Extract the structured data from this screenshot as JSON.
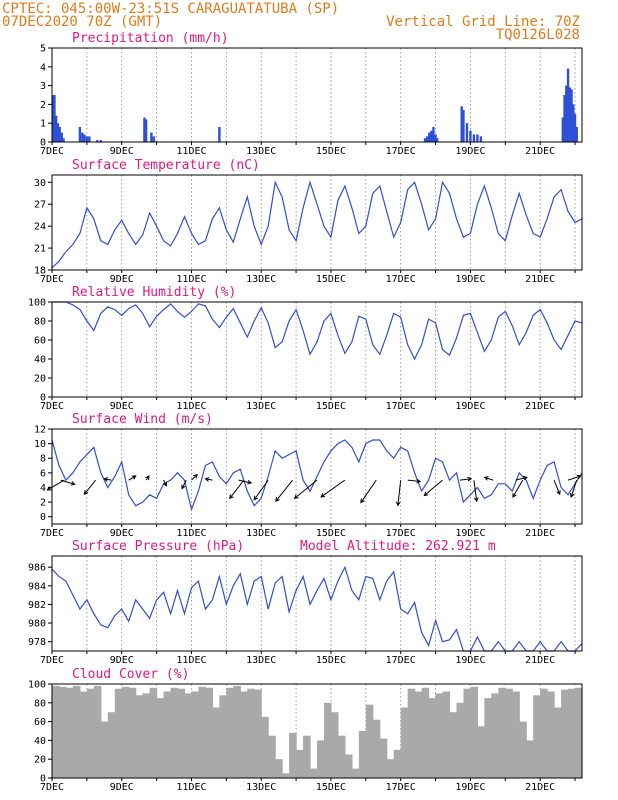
{
  "header": {
    "line1": "CPTEC:  045:00W-23:51S  CARAGUATATUBA (SP)",
    "line2": "07DEC2020 70Z (GMT)",
    "right1": "Vertical Grid Line: 70Z",
    "right2": "TQ0126L028"
  },
  "colors": {
    "series": "#2e4fd6",
    "cloud": "#a9a9a9",
    "title": "#e0197d",
    "header": "#e07b1a"
  },
  "chart_data": [
    {
      "type": "bar",
      "title": "Precipitation (mm/h)",
      "x_range": [
        7,
        22.2
      ],
      "ylim": [
        0,
        5
      ],
      "yticks": [
        0,
        1,
        2,
        3,
        4,
        5
      ],
      "xticks": [
        "7DEC",
        "9DEC",
        "11DEC",
        "13DEC",
        "15DEC",
        "17DEC",
        "19DEC",
        "21DEC"
      ],
      "x": [
        7.03,
        7.07,
        7.12,
        7.17,
        7.22,
        7.28,
        7.33,
        7.8,
        7.87,
        7.93,
        8.0,
        8.07,
        8.3,
        8.4,
        9.65,
        9.7,
        9.85,
        9.92,
        11.8,
        17.7,
        17.76,
        17.82,
        17.88,
        17.94,
        18.0,
        18.05,
        18.75,
        18.8,
        18.9,
        19.0,
        19.1,
        19.2,
        19.3,
        21.65,
        21.7,
        21.75,
        21.8,
        21.85,
        21.9,
        21.95,
        22.0,
        22.05
      ],
      "values": [
        2.5,
        2.5,
        1.4,
        1.0,
        0.8,
        0.5,
        0.2,
        0.8,
        0.5,
        0.4,
        0.3,
        0.3,
        0.1,
        0.1,
        1.3,
        1.2,
        0.5,
        0.3,
        0.8,
        0.2,
        0.3,
        0.5,
        0.6,
        0.8,
        0.4,
        0.2,
        1.9,
        1.7,
        1.0,
        0.6,
        0.4,
        0.4,
        0.3,
        1.3,
        2.5,
        3.0,
        3.9,
        2.9,
        2.8,
        2.0,
        1.5,
        0.8
      ]
    },
    {
      "type": "line",
      "title": "Surface Temperature (nC)",
      "x_range": [
        7,
        22.2
      ],
      "ylim": [
        18,
        31
      ],
      "yticks": [
        18,
        21,
        24,
        27,
        30
      ],
      "xticks": [
        "7DEC",
        "9DEC",
        "11DEC",
        "13DEC",
        "15DEC",
        "17DEC",
        "19DEC",
        "21DEC"
      ],
      "x": [
        7.0,
        7.2,
        7.4,
        7.6,
        7.8,
        8.0,
        8.2,
        8.4,
        8.6,
        8.8,
        9.0,
        9.2,
        9.4,
        9.6,
        9.8,
        10.0,
        10.2,
        10.4,
        10.6,
        10.8,
        11.0,
        11.2,
        11.4,
        11.6,
        11.8,
        12.0,
        12.2,
        12.4,
        12.6,
        12.8,
        13.0,
        13.2,
        13.4,
        13.6,
        13.8,
        14.0,
        14.2,
        14.4,
        14.6,
        14.8,
        15.0,
        15.2,
        15.4,
        15.6,
        15.8,
        16.0,
        16.2,
        16.4,
        16.6,
        16.8,
        17.0,
        17.2,
        17.4,
        17.6,
        17.8,
        18.0,
        18.2,
        18.4,
        18.6,
        18.8,
        19.0,
        19.2,
        19.4,
        19.6,
        19.8,
        20.0,
        20.2,
        20.4,
        20.6,
        20.8,
        21.0,
        21.2,
        21.4,
        21.6,
        21.8,
        22.0,
        22.2
      ],
      "values": [
        18.3,
        19.2,
        20.5,
        21.5,
        23.0,
        26.5,
        25.0,
        22.0,
        21.5,
        23.5,
        24.8,
        23.0,
        21.5,
        22.8,
        25.8,
        24.0,
        22.0,
        21.3,
        23.0,
        25.3,
        23.0,
        21.5,
        22.0,
        25.0,
        26.5,
        23.5,
        21.8,
        25.0,
        28.0,
        24.0,
        21.5,
        24.0,
        30.0,
        28.0,
        23.5,
        22.0,
        26.5,
        30.0,
        27.0,
        24.0,
        22.5,
        27.5,
        29.5,
        26.5,
        23.0,
        24.0,
        28.5,
        29.5,
        26.0,
        22.5,
        24.5,
        29.0,
        30.0,
        27.0,
        23.5,
        25.0,
        30.0,
        28.5,
        25.0,
        22.5,
        23.0,
        27.0,
        29.5,
        26.5,
        23.0,
        22.0,
        25.5,
        28.5,
        25.5,
        23.0,
        22.5,
        25.0,
        28.0,
        29.0,
        26.0,
        24.5,
        25.0
      ]
    },
    {
      "type": "line",
      "title": "Relative Humidity (%)",
      "x_range": [
        7,
        22.2
      ],
      "ylim": [
        0,
        100
      ],
      "yticks": [
        0,
        20,
        40,
        60,
        80,
        100
      ],
      "xticks": [
        "7DEC",
        "9DEC",
        "11DEC",
        "13DEC",
        "15DEC",
        "17DEC",
        "19DEC",
        "21DEC"
      ],
      "x": [
        7.0,
        7.2,
        7.4,
        7.6,
        7.8,
        8.0,
        8.2,
        8.4,
        8.6,
        8.8,
        9.0,
        9.2,
        9.4,
        9.6,
        9.8,
        10.0,
        10.2,
        10.4,
        10.6,
        10.8,
        11.0,
        11.2,
        11.4,
        11.6,
        11.8,
        12.0,
        12.2,
        12.4,
        12.6,
        12.8,
        13.0,
        13.2,
        13.4,
        13.6,
        13.8,
        14.0,
        14.2,
        14.4,
        14.6,
        14.8,
        15.0,
        15.2,
        15.4,
        15.6,
        15.8,
        16.0,
        16.2,
        16.4,
        16.6,
        16.8,
        17.0,
        17.2,
        17.4,
        17.6,
        17.8,
        18.0,
        18.2,
        18.4,
        18.6,
        18.8,
        19.0,
        19.2,
        19.4,
        19.6,
        19.8,
        20.0,
        20.2,
        20.4,
        20.6,
        20.8,
        21.0,
        21.2,
        21.4,
        21.6,
        21.8,
        22.0,
        22.2
      ],
      "values": [
        100,
        100,
        100,
        97,
        92,
        80,
        70,
        88,
        95,
        92,
        86,
        93,
        97,
        88,
        74,
        85,
        92,
        98,
        90,
        84,
        90,
        98,
        96,
        82,
        73,
        84,
        93,
        78,
        63,
        80,
        94,
        78,
        52,
        58,
        80,
        92,
        70,
        45,
        58,
        80,
        88,
        65,
        46,
        58,
        85,
        82,
        55,
        45,
        65,
        88,
        84,
        55,
        40,
        55,
        82,
        78,
        50,
        44,
        62,
        86,
        88,
        68,
        48,
        60,
        84,
        90,
        75,
        55,
        68,
        86,
        92,
        78,
        60,
        50,
        65,
        80,
        78
      ]
    },
    {
      "type": "line",
      "title": "Surface Wind (m/s)",
      "x_range": [
        7,
        22.2
      ],
      "ylim": [
        -1,
        12
      ],
      "yticks": [
        0,
        2,
        4,
        6,
        8,
        10,
        12
      ],
      "xticks": [
        "7DEC",
        "9DEC",
        "11DEC",
        "13DEC",
        "15DEC",
        "17DEC",
        "19DEC",
        "21DEC"
      ],
      "x": [
        7.0,
        7.2,
        7.4,
        7.6,
        7.8,
        8.0,
        8.2,
        8.4,
        8.6,
        8.8,
        9.0,
        9.2,
        9.4,
        9.6,
        9.8,
        10.0,
        10.2,
        10.4,
        10.6,
        10.8,
        11.0,
        11.2,
        11.4,
        11.6,
        11.8,
        12.0,
        12.2,
        12.4,
        12.6,
        12.8,
        13.0,
        13.2,
        13.4,
        13.6,
        13.8,
        14.0,
        14.2,
        14.4,
        14.6,
        14.8,
        15.0,
        15.2,
        15.4,
        15.6,
        15.8,
        16.0,
        16.2,
        16.4,
        16.6,
        16.8,
        17.0,
        17.2,
        17.4,
        17.6,
        17.8,
        18.0,
        18.2,
        18.4,
        18.6,
        18.8,
        19.0,
        19.2,
        19.4,
        19.6,
        19.8,
        20.0,
        20.2,
        20.4,
        20.6,
        20.8,
        21.0,
        21.2,
        21.4,
        21.6,
        21.8,
        22.0,
        22.2
      ],
      "values": [
        10.5,
        7.0,
        5.0,
        6.0,
        7.5,
        8.5,
        9.5,
        6.0,
        4.0,
        5.5,
        7.5,
        3.0,
        1.5,
        2.0,
        3.0,
        2.5,
        4.5,
        5.0,
        6.0,
        5.0,
        1.0,
        3.5,
        7.0,
        7.5,
        5.5,
        4.5,
        6.0,
        6.5,
        3.5,
        1.5,
        2.5,
        5.5,
        9.0,
        8.0,
        8.5,
        9.0,
        5.0,
        3.5,
        5.5,
        7.5,
        9.0,
        10.0,
        10.5,
        9.5,
        7.5,
        10.0,
        10.5,
        10.5,
        9.0,
        8.0,
        9.5,
        9.0,
        6.0,
        3.5,
        5.0,
        8.0,
        7.5,
        5.0,
        6.0,
        2.0,
        3.0,
        4.0,
        2.5,
        3.0,
        4.5,
        4.5,
        3.5,
        6.0,
        5.0,
        2.5,
        5.0,
        7.0,
        7.5,
        4.0,
        3.0,
        4.5,
        6.0
      ],
      "arrows": [
        {
          "x": 7.25,
          "u": 1.0,
          "v": -0.3
        },
        {
          "x": 7.35,
          "u": -1.2,
          "v": -0.7
        },
        {
          "x": 8.25,
          "u": -0.8,
          "v": -1.0
        },
        {
          "x": 8.7,
          "u": -0.5,
          "v": 0.1
        },
        {
          "x": 9.2,
          "u": 0.5,
          "v": 0.3
        },
        {
          "x": 9.7,
          "u": 0.2,
          "v": 0.3
        },
        {
          "x": 10.2,
          "u": 0.2,
          "v": -0.4
        },
        {
          "x": 10.85,
          "u": -0.3,
          "v": -0.6
        },
        {
          "x": 11.0,
          "u": 0.4,
          "v": 0.4
        },
        {
          "x": 11.6,
          "u": -0.5,
          "v": 0.1
        },
        {
          "x": 12.35,
          "u": 0.9,
          "v": -0.2
        },
        {
          "x": 12.5,
          "u": -1.0,
          "v": -1.3
        },
        {
          "x": 13.2,
          "u": -1.0,
          "v": -1.4
        },
        {
          "x": 13.9,
          "u": -1.2,
          "v": -1.5
        },
        {
          "x": 14.6,
          "u": -1.6,
          "v": -1.3
        },
        {
          "x": 15.4,
          "u": -1.7,
          "v": -1.2
        },
        {
          "x": 16.3,
          "u": -1.1,
          "v": -1.6
        },
        {
          "x": 17.0,
          "u": -0.2,
          "v": -1.8
        },
        {
          "x": 17.2,
          "u": 0.9,
          "v": -0.1
        },
        {
          "x": 18.2,
          "u": -1.3,
          "v": -1.1
        },
        {
          "x": 18.7,
          "u": 0.8,
          "v": 0.1
        },
        {
          "x": 19.1,
          "u": 0.2,
          "v": -1.5
        },
        {
          "x": 19.65,
          "u": -0.6,
          "v": 0.2
        },
        {
          "x": 20.3,
          "u": 0.8,
          "v": 0.2
        },
        {
          "x": 20.5,
          "u": -0.7,
          "v": -1.2
        },
        {
          "x": 21.4,
          "u": 0.4,
          "v": -1.0
        },
        {
          "x": 21.8,
          "u": 0.9,
          "v": 0.3
        },
        {
          "x": 22.05,
          "u": -0.4,
          "v": -1.2
        }
      ]
    },
    {
      "type": "line",
      "title": "Surface Pressure (hPa)",
      "annotation": "Model Altitude: 262.921 m",
      "x_range": [
        7,
        22.2
      ],
      "ylim": [
        977,
        987.2
      ],
      "yticks": [
        978,
        980,
        982,
        984,
        986
      ],
      "xticks": [
        "7DEC",
        "9DEC",
        "11DEC",
        "13DEC",
        "15DEC",
        "17DEC",
        "19DEC",
        "21DEC"
      ],
      "x": [
        7.0,
        7.2,
        7.4,
        7.6,
        7.8,
        8.0,
        8.2,
        8.4,
        8.6,
        8.8,
        9.0,
        9.2,
        9.4,
        9.6,
        9.8,
        10.0,
        10.2,
        10.4,
        10.6,
        10.8,
        11.0,
        11.2,
        11.4,
        11.6,
        11.8,
        12.0,
        12.2,
        12.4,
        12.6,
        12.8,
        13.0,
        13.2,
        13.4,
        13.6,
        13.8,
        14.0,
        14.2,
        14.4,
        14.6,
        14.8,
        15.0,
        15.2,
        15.4,
        15.6,
        15.8,
        16.0,
        16.2,
        16.4,
        16.6,
        16.8,
        17.0,
        17.2,
        17.4,
        17.6,
        17.8,
        18.0,
        18.2,
        18.4,
        18.6,
        18.8,
        19.0,
        19.2,
        19.4,
        19.6,
        19.8,
        20.0,
        20.2,
        20.4,
        20.6,
        20.8,
        21.0,
        21.2,
        21.4,
        21.6,
        21.8,
        22.0,
        22.2
      ],
      "values": [
        985.8,
        985.0,
        984.5,
        983.0,
        981.5,
        982.5,
        981.0,
        979.8,
        979.5,
        980.8,
        981.5,
        980.2,
        982.5,
        981.5,
        980.5,
        982.5,
        983.3,
        981.0,
        983.5,
        981.0,
        983.8,
        984.5,
        981.5,
        982.5,
        985.0,
        982.0,
        984.0,
        985.3,
        982.0,
        984.5,
        985.0,
        981.5,
        984.3,
        985.0,
        981.2,
        983.5,
        985.0,
        982.0,
        983.5,
        984.8,
        982.5,
        984.5,
        986.0,
        983.5,
        982.5,
        985.0,
        984.8,
        982.5,
        984.5,
        985.5,
        981.5,
        981.0,
        982.2,
        979.0,
        977.6,
        980.3,
        978.0,
        978.2,
        979.3,
        977.0,
        977.0,
        978.5,
        977.0,
        977.0,
        978.0,
        977.0,
        977.0,
        978.0,
        977.0,
        977.0,
        978.0,
        977.0,
        977.0,
        978.0,
        977.0,
        977.0,
        977.8
      ]
    },
    {
      "type": "bar",
      "title": "Cloud Cover (%)",
      "x_range": [
        7,
        22.2
      ],
      "ylim": [
        0,
        100
      ],
      "yticks": [
        0,
        20,
        40,
        60,
        80,
        100
      ],
      "xticks": [
        "7DEC",
        "9DEC",
        "11DEC",
        "13DEC",
        "15DEC",
        "17DEC",
        "19DEC",
        "21DEC"
      ],
      "x": [
        7.0,
        7.2,
        7.4,
        7.6,
        7.8,
        8.0,
        8.2,
        8.4,
        8.6,
        8.8,
        9.0,
        9.2,
        9.4,
        9.6,
        9.8,
        10.0,
        10.2,
        10.4,
        10.6,
        10.8,
        11.0,
        11.2,
        11.4,
        11.6,
        11.8,
        12.0,
        12.2,
        12.4,
        12.6,
        12.8,
        13.0,
        13.2,
        13.4,
        13.6,
        13.8,
        14.0,
        14.2,
        14.4,
        14.6,
        14.8,
        15.0,
        15.2,
        15.4,
        15.6,
        15.8,
        16.0,
        16.2,
        16.4,
        16.6,
        16.8,
        17.0,
        17.2,
        17.4,
        17.6,
        17.8,
        18.0,
        18.2,
        18.4,
        18.6,
        18.8,
        19.0,
        19.2,
        19.4,
        19.6,
        19.8,
        20.0,
        20.2,
        20.4,
        20.6,
        20.8,
        21.0,
        21.2,
        21.4,
        21.6,
        21.8,
        22.0,
        22.2
      ],
      "values": [
        98,
        97,
        96,
        98,
        92,
        95,
        98,
        60,
        70,
        95,
        97,
        96,
        88,
        90,
        96,
        85,
        92,
        96,
        95,
        90,
        92,
        97,
        96,
        75,
        88,
        96,
        98,
        92,
        95,
        94,
        65,
        45,
        20,
        5,
        48,
        30,
        45,
        10,
        40,
        80,
        70,
        45,
        25,
        10,
        50,
        78,
        62,
        42,
        20,
        30,
        75,
        95,
        92,
        96,
        85,
        90,
        92,
        70,
        80,
        95,
        97,
        55,
        85,
        90,
        96,
        95,
        92,
        60,
        40,
        88,
        95,
        92,
        75,
        94,
        95,
        96,
        98
      ]
    }
  ]
}
